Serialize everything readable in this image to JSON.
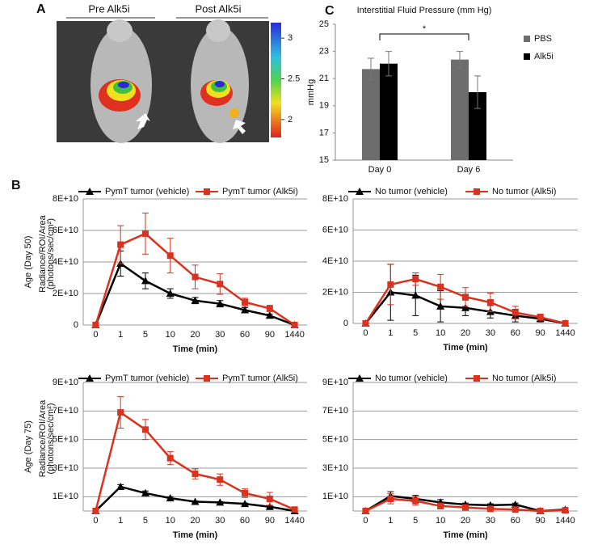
{
  "figure": {
    "panel_labels": [
      "A",
      "B",
      "C"
    ]
  },
  "image_panel": {
    "labels": [
      "Pre Alk5i",
      "Post Alk5i"
    ],
    "colorbar": {
      "lim": [
        1.78,
        3.19
      ],
      "ticks": [
        3,
        2.5,
        2
      ]
    }
  },
  "chart_data": [
    {
      "type": "bar",
      "title": "Interstitial Fluid Pressure (mm Hg)",
      "ylabel": "mmHg",
      "categories": [
        "Day 0",
        "Day 6"
      ],
      "series": [
        {
          "name": "PBS",
          "color": "#6d6d6d",
          "values": [
            21.7,
            22.4
          ],
          "errors": [
            0.8,
            0.6
          ]
        },
        {
          "name": "Alk5i",
          "color": "#000000",
          "values": [
            22.1,
            20.0
          ],
          "errors": [
            0.9,
            1.2
          ]
        }
      ],
      "ylim": [
        15,
        25
      ],
      "yticks": [
        15,
        17,
        19,
        21,
        23,
        25
      ],
      "annotation": "*",
      "legend": "right"
    },
    {
      "type": "line",
      "row_label": "Age (Day 50)",
      "ylabel": [
        "Radiance/ROI/Area",
        "(photons/sec/cm²)"
      ],
      "xlabel": "Time (min)",
      "categories": [
        "0",
        "1",
        "5",
        "10",
        "20",
        "30",
        "60",
        "90",
        "1440"
      ],
      "series": [
        {
          "name": "PymT tumor (vehicle)",
          "color": "#000000",
          "marker": "triangle",
          "values": [
            0,
            39000000000.0,
            28000000000.0,
            20000000000.0,
            15500000000.0,
            13500000000.0,
            9500000000.0,
            6000000000.0,
            0
          ],
          "errors": [
            null,
            8000000000.0,
            5000000000.0,
            3000000000.0,
            2000000000.0,
            2000000000.0,
            1500000000.0,
            1000000000.0,
            null
          ]
        },
        {
          "name": "PymT tumor (Alk5i)",
          "color": "#d9321f",
          "marker": "square",
          "values": [
            0,
            51000000000.0,
            58000000000.0,
            44000000000.0,
            30500000000.0,
            26000000000.0,
            14500000000.0,
            10500000000.0,
            0
          ],
          "errors": [
            null,
            12000000000.0,
            13000000000.0,
            11000000000.0,
            7500000000.0,
            6500000000.0,
            2500000000.0,
            2000000000.0,
            null
          ]
        }
      ],
      "ylim": [
        0,
        80000000000.0
      ],
      "yticks": [
        0,
        {
          "value": 20000000000.0,
          "label": "2E+10"
        },
        {
          "value": 40000000000.0,
          "label": "4E+10"
        },
        {
          "value": 60000000000.0,
          "label": "6E+10"
        },
        {
          "value": 80000000000.0,
          "label": "8E+10"
        }
      ],
      "grid": true,
      "legend": "top"
    },
    {
      "type": "line",
      "xlabel": "Time (min)",
      "categories": [
        "0",
        "1",
        "5",
        "10",
        "20",
        "30",
        "60",
        "90",
        "1440"
      ],
      "series": [
        {
          "name": "No tumor (vehicle)",
          "color": "#000000",
          "marker": "triangle",
          "values": [
            0,
            20000000000.0,
            18000000000.0,
            11000000000.0,
            10000000000.0,
            7500000000.0,
            5000000000.0,
            3000000000.0,
            0
          ],
          "errors": [
            null,
            18000000000.0,
            13000000000.0,
            10000000000.0,
            5000000000.0,
            4000000000.0,
            4000000000.0,
            2000000000.0,
            null
          ]
        },
        {
          "name": "No tumor (Alk5i)",
          "color": "#d9321f",
          "marker": "square",
          "values": [
            0,
            25000000000.0,
            28500000000.0,
            23500000000.0,
            17000000000.0,
            13500000000.0,
            7000000000.0,
            4000000000.0,
            0
          ],
          "errors": [
            null,
            13000000000.0,
            4000000000.0,
            8000000000.0,
            6000000000.0,
            6000000000.0,
            4000000000.0,
            2000000000.0,
            null
          ]
        }
      ],
      "ylim": [
        0,
        80000000000.0
      ],
      "yticks": [
        0,
        {
          "value": 20000000000.0,
          "label": "2E+10"
        },
        {
          "value": 40000000000.0,
          "label": "4E+10"
        },
        {
          "value": 60000000000.0,
          "label": "6E+10"
        },
        {
          "value": 80000000000.0,
          "label": "8E+10"
        }
      ],
      "grid": true,
      "legend": "top"
    },
    {
      "type": "line",
      "row_label": "Age (Day 75)",
      "ylabel": [
        "Radiance/ROI/Area",
        "(photons/sec/cm²)"
      ],
      "xlabel": "Time (min)",
      "categories": [
        "0",
        "1",
        "5",
        "10",
        "20",
        "30",
        "60",
        "90",
        "1440"
      ],
      "series": [
        {
          "name": "PymT tumor (vehicle)",
          "color": "#000000",
          "marker": "triangle",
          "values": [
            0,
            17000000000.0,
            12500000000.0,
            9000000000.0,
            6500000000.0,
            6000000000.0,
            5000000000.0,
            3000000000.0,
            0
          ],
          "errors": [
            null,
            1500000000.0,
            1500000000.0,
            1000000000.0,
            500000000.0,
            500000000.0,
            500000000.0,
            500000000.0,
            null
          ]
        },
        {
          "name": "PymT tumor (Alk5i)",
          "color": "#d9321f",
          "marker": "square",
          "values": [
            0,
            69000000000.0,
            57000000000.0,
            37000000000.0,
            26000000000.0,
            22000000000.0,
            12500000000.0,
            8500000000.0,
            1000000000.0
          ],
          "errors": [
            null,
            11000000000.0,
            7000000000.0,
            4500000000.0,
            3500000000.0,
            4000000000.0,
            3000000000.0,
            4500000000.0,
            null
          ]
        }
      ],
      "ylim": [
        0,
        90000000000.0
      ],
      "yticks": [
        {
          "value": 10000000000.0,
          "label": "1E+10"
        },
        {
          "value": 30000000000.0,
          "label": "3E+10"
        },
        {
          "value": 50000000000.0,
          "label": "5E+10"
        },
        {
          "value": 70000000000.0,
          "label": "7E+10"
        },
        {
          "value": 90000000000.0,
          "label": "9E+10"
        }
      ],
      "grid": true,
      "legend": "top"
    },
    {
      "type": "line",
      "xlabel": "Time (min)",
      "categories": [
        "0",
        "1",
        "5",
        "10",
        "20",
        "30",
        "60",
        "90",
        "1440"
      ],
      "series": [
        {
          "name": "No tumor (vehicle)",
          "color": "#000000",
          "marker": "triangle",
          "values": [
            0,
            10500000000.0,
            8500000000.0,
            6000000000.0,
            4500000000.0,
            4000000000.0,
            4500000000.0,
            0,
            1000000000.0
          ],
          "errors": [
            null,
            3000000000.0,
            2500000000.0,
            2000000000.0,
            1000000000.0,
            1000000000.0,
            1000000000.0,
            null,
            null
          ]
        },
        {
          "name": "No tumor (Alk5i)",
          "color": "#d9321f",
          "marker": "square",
          "values": [
            0,
            8500000000.0,
            7000000000.0,
            3500000000.0,
            2500000000.0,
            1500000000.0,
            1000000000.0,
            0,
            500000000.0
          ],
          "errors": [
            null,
            3500000000.0,
            3000000000.0,
            2000000000.0,
            1500000000.0,
            1000000000.0,
            500000000.0,
            null,
            null
          ]
        }
      ],
      "ylim": [
        0,
        90000000000.0
      ],
      "yticks": [
        {
          "value": 10000000000.0,
          "label": "1E+10"
        },
        {
          "value": 30000000000.0,
          "label": "3E+10"
        },
        {
          "value": 50000000000.0,
          "label": "5E+10"
        },
        {
          "value": 70000000000.0,
          "label": "7E+10"
        },
        {
          "value": 90000000000.0,
          "label": "9E+10"
        }
      ],
      "grid": true,
      "legend": "top"
    }
  ]
}
